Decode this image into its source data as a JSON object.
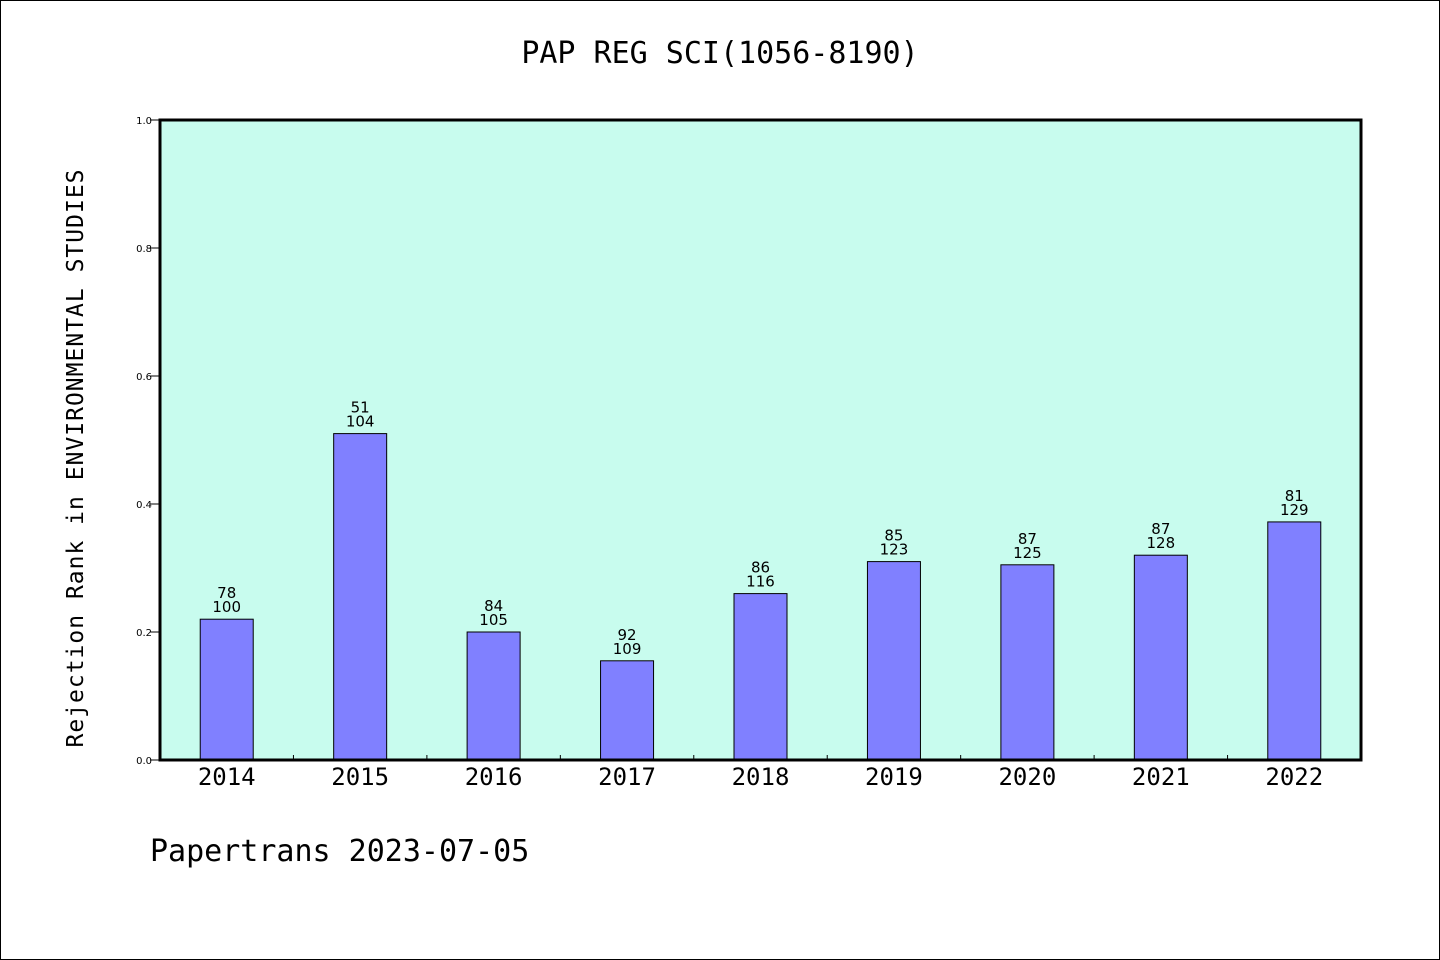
{
  "chart_data": {
    "type": "bar",
    "title": "PAP REG SCI(1056-8190)",
    "xlabel": "",
    "ylabel": "Rejection Rank in ENVIRONMENTAL STUDIES",
    "ylim": [
      0,
      1.0
    ],
    "yticks": [
      "0.0",
      "0.2",
      "0.4",
      "0.6",
      "0.8",
      "1.0"
    ],
    "categories": [
      "2014",
      "2015",
      "2016",
      "2017",
      "2018",
      "2019",
      "2020",
      "2021",
      "2022"
    ],
    "values": [
      0.22,
      0.51,
      0.2,
      0.155,
      0.26,
      0.31,
      0.305,
      0.32,
      0.372
    ],
    "rank": [
      "78",
      "51",
      "84",
      "92",
      "86",
      "85",
      "87",
      "87",
      "81"
    ],
    "total": [
      "100",
      "104",
      "105",
      "109",
      "116",
      "123",
      "125",
      "128",
      "129"
    ],
    "grid": false,
    "colors": {
      "plot_background": "#c8fcee",
      "bar_fill": "#8080ff",
      "bar_stroke": "#000000"
    }
  },
  "footer": "Papertrans 2023-07-05"
}
